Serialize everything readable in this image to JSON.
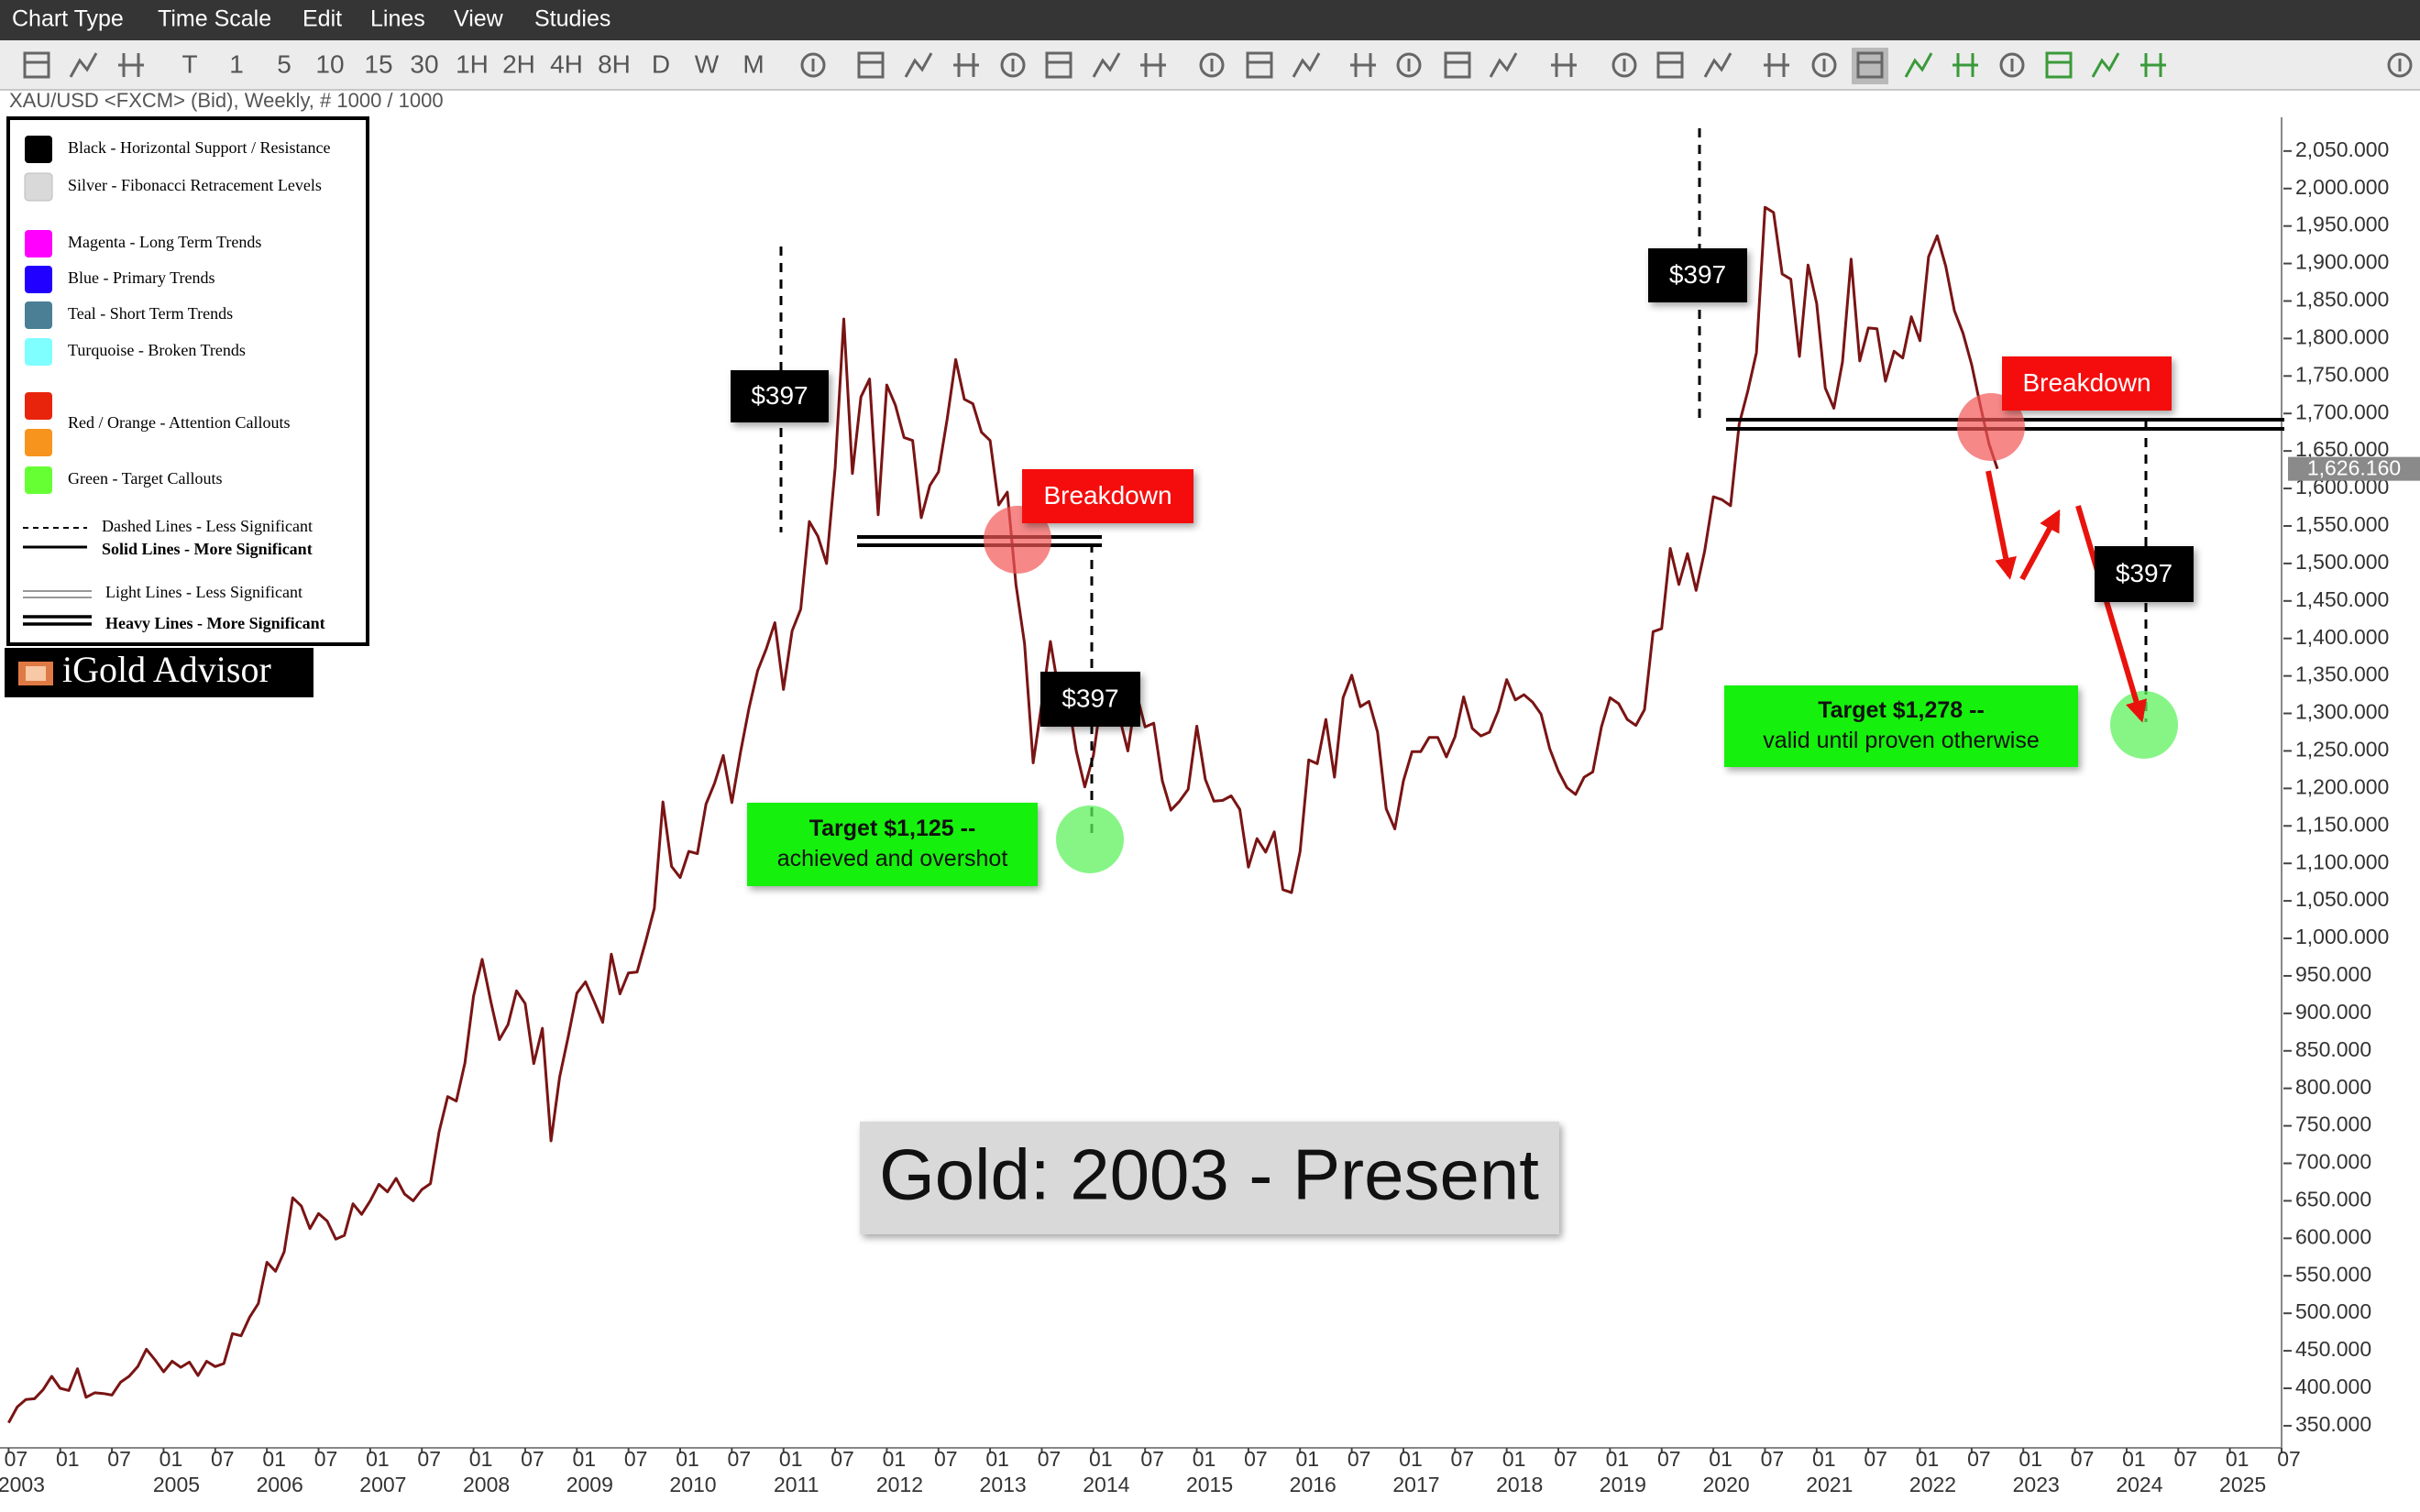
{
  "menu": [
    "Chart Type",
    "Time Scale",
    "Edit",
    "Lines",
    "View",
    "Studies"
  ],
  "toolbar": [
    "T",
    "1",
    "5",
    "10",
    "15",
    "30",
    "1H",
    "2H",
    "4H",
    "8H",
    "D",
    "W",
    "M"
  ],
  "symbol": "XAU/USD <FXCM> (Bid), Weekly, # 1000 / 1000",
  "legend_box": {
    "color_items": [
      {
        "colors": [
          "#000000"
        ],
        "label": "Black - Horizontal Support / Resistance"
      },
      {
        "colors": [
          "#d9d9d9"
        ],
        "label": "Silver - Fibonacci Retracement Levels"
      },
      {
        "colors": [
          "#ff00ff"
        ],
        "label": "Magenta - Long Term Trends"
      },
      {
        "colors": [
          "#2200ff"
        ],
        "label": "Blue - Primary Trends"
      },
      {
        "colors": [
          "#4a7f96"
        ],
        "label": "Teal - Short Term Trends"
      },
      {
        "colors": [
          "#7fffff"
        ],
        "label": "Turquoise - Broken Trends"
      },
      {
        "colors": [
          "#e8240c",
          "#f7941d"
        ],
        "label": "Red / Orange - Attention Callouts"
      },
      {
        "colors": [
          "#66ff33"
        ],
        "label": "Green - Target Callouts"
      }
    ],
    "line_items": [
      "Dashed Lines - Less Significant",
      "Solid Lines - More Significant",
      "Light Lines - Less Significant",
      "Heavy Lines - More Significant"
    ]
  },
  "brand": "iGold Advisor",
  "chart_data": {
    "type": "line",
    "title": "Gold: 2003 - Present",
    "color": "#7a1414",
    "x": [
      "2003-07",
      "2003-08",
      "2003-09",
      "2003-10",
      "2003-11",
      "2003-12",
      "2004-01",
      "2004-02",
      "2004-03",
      "2004-04",
      "2004-05",
      "2004-06",
      "2004-07",
      "2004-08",
      "2004-09",
      "2004-10",
      "2004-11",
      "2004-12",
      "2005-01",
      "2005-02",
      "2005-03",
      "2005-04",
      "2005-05",
      "2005-06",
      "2005-07",
      "2005-08",
      "2005-09",
      "2005-10",
      "2005-11",
      "2005-12",
      "2006-01",
      "2006-02",
      "2006-03",
      "2006-04",
      "2006-05",
      "2006-06",
      "2006-07",
      "2006-08",
      "2006-09",
      "2006-10",
      "2006-11",
      "2006-12",
      "2007-01",
      "2007-02",
      "2007-03",
      "2007-04",
      "2007-05",
      "2007-06",
      "2007-07",
      "2007-08",
      "2007-09",
      "2007-10",
      "2007-11",
      "2007-12",
      "2008-01",
      "2008-02",
      "2008-03",
      "2008-04",
      "2008-05",
      "2008-06",
      "2008-07",
      "2008-08",
      "2008-09",
      "2008-10",
      "2008-11",
      "2008-12",
      "2009-01",
      "2009-02",
      "2009-03",
      "2009-04",
      "2009-05",
      "2009-06",
      "2009-07",
      "2009-08",
      "2009-09",
      "2009-10",
      "2009-11",
      "2009-12",
      "2010-01",
      "2010-02",
      "2010-03",
      "2010-04",
      "2010-05",
      "2010-06",
      "2010-07",
      "2010-08",
      "2010-09",
      "2010-10",
      "2010-11",
      "2010-12",
      "2011-01",
      "2011-02",
      "2011-03",
      "2011-04",
      "2011-05",
      "2011-06",
      "2011-07",
      "2011-08",
      "2011-09",
      "2011-10",
      "2011-11",
      "2011-12",
      "2012-01",
      "2012-02",
      "2012-03",
      "2012-04",
      "2012-05",
      "2012-06",
      "2012-07",
      "2012-08",
      "2012-09",
      "2012-10",
      "2012-11",
      "2012-12",
      "2013-01",
      "2013-02",
      "2013-03",
      "2013-04",
      "2013-05",
      "2013-06",
      "2013-07",
      "2013-08",
      "2013-09",
      "2013-10",
      "2013-11",
      "2013-12",
      "2014-01",
      "2014-02",
      "2014-03",
      "2014-04",
      "2014-05",
      "2014-06",
      "2014-07",
      "2014-08",
      "2014-09",
      "2014-10",
      "2014-11",
      "2014-12",
      "2015-01",
      "2015-02",
      "2015-03",
      "2015-04",
      "2015-05",
      "2015-06",
      "2015-07",
      "2015-08",
      "2015-09",
      "2015-10",
      "2015-11",
      "2015-12",
      "2016-01",
      "2016-02",
      "2016-03",
      "2016-04",
      "2016-05",
      "2016-06",
      "2016-07",
      "2016-08",
      "2016-09",
      "2016-10",
      "2016-11",
      "2016-12",
      "2017-01",
      "2017-02",
      "2017-03",
      "2017-04",
      "2017-05",
      "2017-06",
      "2017-07",
      "2017-08",
      "2017-09",
      "2017-10",
      "2017-11",
      "2017-12",
      "2018-01",
      "2018-02",
      "2018-03",
      "2018-04",
      "2018-05",
      "2018-06",
      "2018-07",
      "2018-08",
      "2018-09",
      "2018-10",
      "2018-11",
      "2018-12",
      "2019-01",
      "2019-02",
      "2019-03",
      "2019-04",
      "2019-05",
      "2019-06",
      "2019-07",
      "2019-08",
      "2019-09",
      "2019-10",
      "2019-11",
      "2019-12",
      "2020-01",
      "2020-02",
      "2020-03",
      "2020-04",
      "2020-05",
      "2020-06",
      "2020-07",
      "2020-08",
      "2020-09",
      "2020-10",
      "2020-11",
      "2020-12",
      "2021-01",
      "2021-02",
      "2021-03",
      "2021-04",
      "2021-05",
      "2021-06",
      "2021-07",
      "2021-08",
      "2021-09",
      "2021-10",
      "2021-11",
      "2021-12",
      "2022-01",
      "2022-02",
      "2022-03",
      "2022-04",
      "2022-05",
      "2022-06",
      "2022-07",
      "2022-08",
      "2022-09",
      "2022-10"
    ],
    "values": [
      354,
      375,
      385,
      386,
      398,
      416,
      400,
      397,
      426,
      388,
      394,
      393,
      391,
      408,
      416,
      429,
      452,
      438,
      422,
      436,
      428,
      435,
      417,
      436,
      429,
      433,
      473,
      470,
      495,
      513,
      568,
      556,
      582,
      654,
      643,
      613,
      633,
      623,
      599,
      604,
      646,
      632,
      650,
      672,
      662,
      680,
      659,
      650,
      665,
      673,
      742,
      789,
      783,
      834,
      923,
      972,
      916,
      865,
      885,
      930,
      913,
      833,
      880,
      730,
      815,
      869,
      927,
      942,
      916,
      888,
      979,
      926,
      954,
      955,
      996,
      1040,
      1182,
      1096,
      1081,
      1116,
      1113,
      1179,
      1207,
      1244,
      1181,
      1248,
      1307,
      1357,
      1386,
      1421,
      1332,
      1410,
      1439,
      1556,
      1536,
      1500,
      1628,
      1826,
      1620,
      1722,
      1746,
      1565,
      1738,
      1711,
      1668,
      1664,
      1561,
      1604,
      1622,
      1692,
      1772,
      1719,
      1713,
      1675,
      1664,
      1578,
      1595,
      1472,
      1393,
      1234,
      1313,
      1396,
      1327,
      1323,
      1250,
      1202,
      1244,
      1326,
      1284,
      1296,
      1250,
      1327,
      1282,
      1287,
      1210,
      1171,
      1183,
      1199,
      1283,
      1212,
      1183,
      1184,
      1190,
      1172,
      1095,
      1133,
      1115,
      1142,
      1065,
      1061,
      1116,
      1238,
      1233,
      1292,
      1215,
      1321,
      1351,
      1309,
      1316,
      1275,
      1173,
      1146,
      1210,
      1249,
      1249,
      1268,
      1268,
      1242,
      1269,
      1322,
      1280,
      1270,
      1275,
      1303,
      1345,
      1318,
      1325,
      1315,
      1299,
      1253,
      1223,
      1201,
      1192,
      1215,
      1222,
      1282,
      1321,
      1313,
      1292,
      1284,
      1305,
      1409,
      1413,
      1520,
      1472,
      1513,
      1464,
      1517,
      1589,
      1585,
      1577,
      1686,
      1730,
      1781,
      1975,
      1968,
      1886,
      1879,
      1776,
      1898,
      1847,
      1734,
      1707,
      1769,
      1906,
      1770,
      1814,
      1813,
      1743,
      1783,
      1774,
      1829,
      1797,
      1909,
      1937,
      1896,
      1837,
      1807,
      1765,
      1711,
      1660,
      1626.16
    ],
    "current_price": {
      "value": 1626.16,
      "label": "1,626.160"
    },
    "xlim": [
      "2003-06",
      "2025-07"
    ],
    "xticks": [
      {
        "value": "2003-07",
        "label": "07"
      },
      {
        "value": "2004-01",
        "label": "01"
      },
      {
        "value": "2004-07",
        "label": "07"
      },
      {
        "value": "2005-01",
        "label": "01"
      },
      {
        "value": "2005-07",
        "label": "07"
      },
      {
        "value": "2006-01",
        "label": "01"
      },
      {
        "value": "2006-07",
        "label": "07"
      },
      {
        "value": "2007-01",
        "label": "01"
      },
      {
        "value": "2007-07",
        "label": "07"
      },
      {
        "value": "2008-01",
        "label": "01"
      },
      {
        "value": "2008-07",
        "label": "07"
      },
      {
        "value": "2009-01",
        "label": "01"
      },
      {
        "value": "2009-07",
        "label": "07"
      },
      {
        "value": "2010-01",
        "label": "01"
      },
      {
        "value": "2010-07",
        "label": "07"
      },
      {
        "value": "2011-01",
        "label": "01"
      },
      {
        "value": "2011-07",
        "label": "07"
      },
      {
        "value": "2012-01",
        "label": "01"
      },
      {
        "value": "2012-07",
        "label": "07"
      },
      {
        "value": "2013-01",
        "label": "01"
      },
      {
        "value": "2013-07",
        "label": "07"
      },
      {
        "value": "2014-01",
        "label": "01"
      },
      {
        "value": "2014-07",
        "label": "07"
      },
      {
        "value": "2015-01",
        "label": "01"
      },
      {
        "value": "2015-07",
        "label": "07"
      },
      {
        "value": "2016-01",
        "label": "01"
      },
      {
        "value": "2016-07",
        "label": "07"
      },
      {
        "value": "2017-01",
        "label": "01"
      },
      {
        "value": "2017-07",
        "label": "07"
      },
      {
        "value": "2018-01",
        "label": "01"
      },
      {
        "value": "2018-07",
        "label": "07"
      },
      {
        "value": "2019-01",
        "label": "01"
      },
      {
        "value": "2019-07",
        "label": "07"
      },
      {
        "value": "2020-01",
        "label": "01"
      },
      {
        "value": "2020-07",
        "label": "07"
      },
      {
        "value": "2021-01",
        "label": "01"
      },
      {
        "value": "2021-07",
        "label": "07"
      },
      {
        "value": "2022-01",
        "label": "01"
      },
      {
        "value": "2022-07",
        "label": "07"
      },
      {
        "value": "2023-01",
        "label": "01"
      },
      {
        "value": "2023-07",
        "label": "07"
      },
      {
        "value": "2024-01",
        "label": "01"
      },
      {
        "value": "2024-07",
        "label": "07"
      },
      {
        "value": "2025-01",
        "label": "01"
      },
      {
        "value": "2025-07",
        "label": "07"
      }
    ],
    "xyears": [
      {
        "value": "2003-07",
        "label": "2003"
      },
      {
        "value": "2005-01",
        "label": "2005"
      },
      {
        "value": "2006-01",
        "label": "2006"
      },
      {
        "value": "2007-01",
        "label": "2007"
      },
      {
        "value": "2008-01",
        "label": "2008"
      },
      {
        "value": "2009-01",
        "label": "2009"
      },
      {
        "value": "2010-01",
        "label": "2010"
      },
      {
        "value": "2011-01",
        "label": "2011"
      },
      {
        "value": "2012-01",
        "label": "2012"
      },
      {
        "value": "2013-01",
        "label": "2013"
      },
      {
        "value": "2014-01",
        "label": "2014"
      },
      {
        "value": "2015-01",
        "label": "2015"
      },
      {
        "value": "2016-01",
        "label": "2016"
      },
      {
        "value": "2017-01",
        "label": "2017"
      },
      {
        "value": "2018-01",
        "label": "2018"
      },
      {
        "value": "2019-01",
        "label": "2019"
      },
      {
        "value": "2020-01",
        "label": "2020"
      },
      {
        "value": "2021-01",
        "label": "2021"
      },
      {
        "value": "2022-01",
        "label": "2022"
      },
      {
        "value": "2023-01",
        "label": "2023"
      },
      {
        "value": "2024-01",
        "label": "2024"
      },
      {
        "value": "2025-01",
        "label": "2025"
      }
    ],
    "ylim": [
      323,
      2095
    ],
    "yticks": [
      {
        "value": 350,
        "label": "350.000"
      },
      {
        "value": 400,
        "label": "400.000"
      },
      {
        "value": 450,
        "label": "450.000"
      },
      {
        "value": 500,
        "label": "500.000"
      },
      {
        "value": 550,
        "label": "550.000"
      },
      {
        "value": 600,
        "label": "600.000"
      },
      {
        "value": 650,
        "label": "650.000"
      },
      {
        "value": 700,
        "label": "700.000"
      },
      {
        "value": 750,
        "label": "750.000"
      },
      {
        "value": 800,
        "label": "800.000"
      },
      {
        "value": 850,
        "label": "850.000"
      },
      {
        "value": 900,
        "label": "900.000"
      },
      {
        "value": 950,
        "label": "950.000"
      },
      {
        "value": 1000,
        "label": "1,000.000"
      },
      {
        "value": 1050,
        "label": "1,050.000"
      },
      {
        "value": 1100,
        "label": "1,100.000"
      },
      {
        "value": 1150,
        "label": "1,150.000"
      },
      {
        "value": 1200,
        "label": "1,200.000"
      },
      {
        "value": 1250,
        "label": "1,250.000"
      },
      {
        "value": 1300,
        "label": "1,300.000"
      },
      {
        "value": 1350,
        "label": "1,350.000"
      },
      {
        "value": 1400,
        "label": "1,400.000"
      },
      {
        "value": 1450,
        "label": "1,450.000"
      },
      {
        "value": 1500,
        "label": "1,500.000"
      },
      {
        "value": 1550,
        "label": "1,550.000"
      },
      {
        "value": 1600,
        "label": "1,600.000"
      },
      {
        "value": 1650,
        "label": "1,650.000"
      },
      {
        "value": 1700,
        "label": "1,700.000"
      },
      {
        "value": 1750,
        "label": "1,750.000"
      },
      {
        "value": 1800,
        "label": "1,800.000"
      },
      {
        "value": 1850,
        "label": "1,850.000"
      },
      {
        "value": 1900,
        "label": "1,900.000"
      },
      {
        "value": 1950,
        "label": "1,950.000"
      },
      {
        "value": 2000,
        "label": "2,000.000"
      },
      {
        "value": 2050,
        "label": "2,050.000"
      }
    ],
    "grid": false,
    "annotations": {
      "measures": [
        "$397",
        "$397",
        "$397",
        "$397"
      ],
      "breakdowns": [
        "Breakdown",
        "Breakdown"
      ],
      "targets": [
        [
          "Target $1,125 --",
          "achieved and overshot"
        ],
        [
          "Target $1,278 --",
          "valid until proven otherwise"
        ]
      ]
    }
  }
}
